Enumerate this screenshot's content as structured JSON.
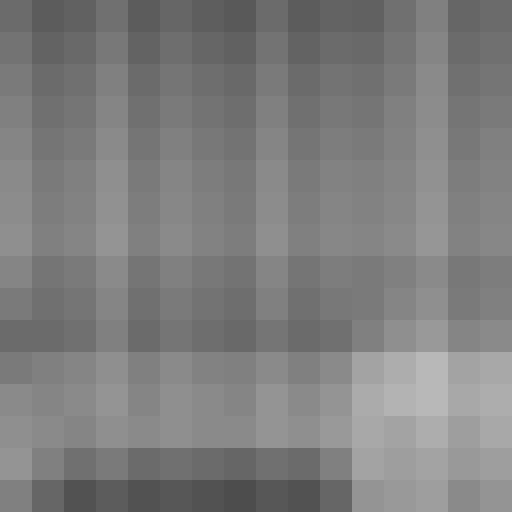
{
  "chart_data": {
    "type": "heatmap",
    "tick_labels": false,
    "zlim": [
      0,
      100
    ],
    "cells": [
      [
        58,
        64,
        62,
        56,
        64,
        60,
        63,
        65,
        58,
        64,
        61,
        62,
        56,
        50,
        60,
        58
      ],
      [
        55,
        61,
        59,
        53,
        61,
        57,
        60,
        62,
        55,
        61,
        58,
        59,
        54,
        48,
        58,
        56
      ],
      [
        52,
        58,
        56,
        50,
        58,
        54,
        57,
        59,
        52,
        58,
        55,
        56,
        52,
        46,
        56,
        54
      ],
      [
        50,
        56,
        54,
        48,
        56,
        52,
        55,
        57,
        50,
        56,
        53,
        54,
        50,
        45,
        54,
        52
      ],
      [
        48,
        54,
        52,
        46,
        54,
        50,
        53,
        55,
        48,
        54,
        51,
        52,
        49,
        44,
        53,
        50
      ],
      [
        46,
        52,
        50,
        44,
        52,
        48,
        51,
        53,
        46,
        52,
        49,
        50,
        48,
        43,
        51,
        49
      ],
      [
        45,
        51,
        49,
        43,
        51,
        47,
        50,
        52,
        45,
        51,
        48,
        49,
        47,
        42,
        50,
        48
      ],
      [
        44,
        50,
        48,
        42,
        50,
        46,
        49,
        51,
        44,
        50,
        47,
        48,
        46,
        41,
        49,
        47
      ],
      [
        48,
        54,
        52,
        46,
        54,
        50,
        53,
        55,
        48,
        54,
        51,
        52,
        50,
        46,
        53,
        51
      ],
      [
        52,
        56,
        54,
        48,
        56,
        52,
        55,
        57,
        50,
        56,
        53,
        52,
        48,
        44,
        52,
        50
      ],
      [
        58,
        58,
        56,
        50,
        58,
        54,
        57,
        59,
        54,
        58,
        56,
        50,
        44,
        40,
        48,
        46
      ],
      [
        52,
        50,
        48,
        44,
        50,
        46,
        49,
        50,
        46,
        50,
        46,
        36,
        32,
        28,
        36,
        34
      ],
      [
        46,
        48,
        46,
        42,
        48,
        44,
        46,
        48,
        42,
        46,
        42,
        33,
        30,
        28,
        34,
        32
      ],
      [
        44,
        46,
        48,
        44,
        46,
        44,
        46,
        46,
        42,
        44,
        40,
        34,
        36,
        32,
        38,
        34
      ],
      [
        42,
        50,
        56,
        52,
        58,
        56,
        58,
        60,
        56,
        58,
        50,
        36,
        38,
        36,
        40,
        38
      ],
      [
        50,
        60,
        68,
        64,
        68,
        66,
        68,
        70,
        66,
        68,
        60,
        42,
        40,
        38,
        46,
        42
      ]
    ]
  }
}
